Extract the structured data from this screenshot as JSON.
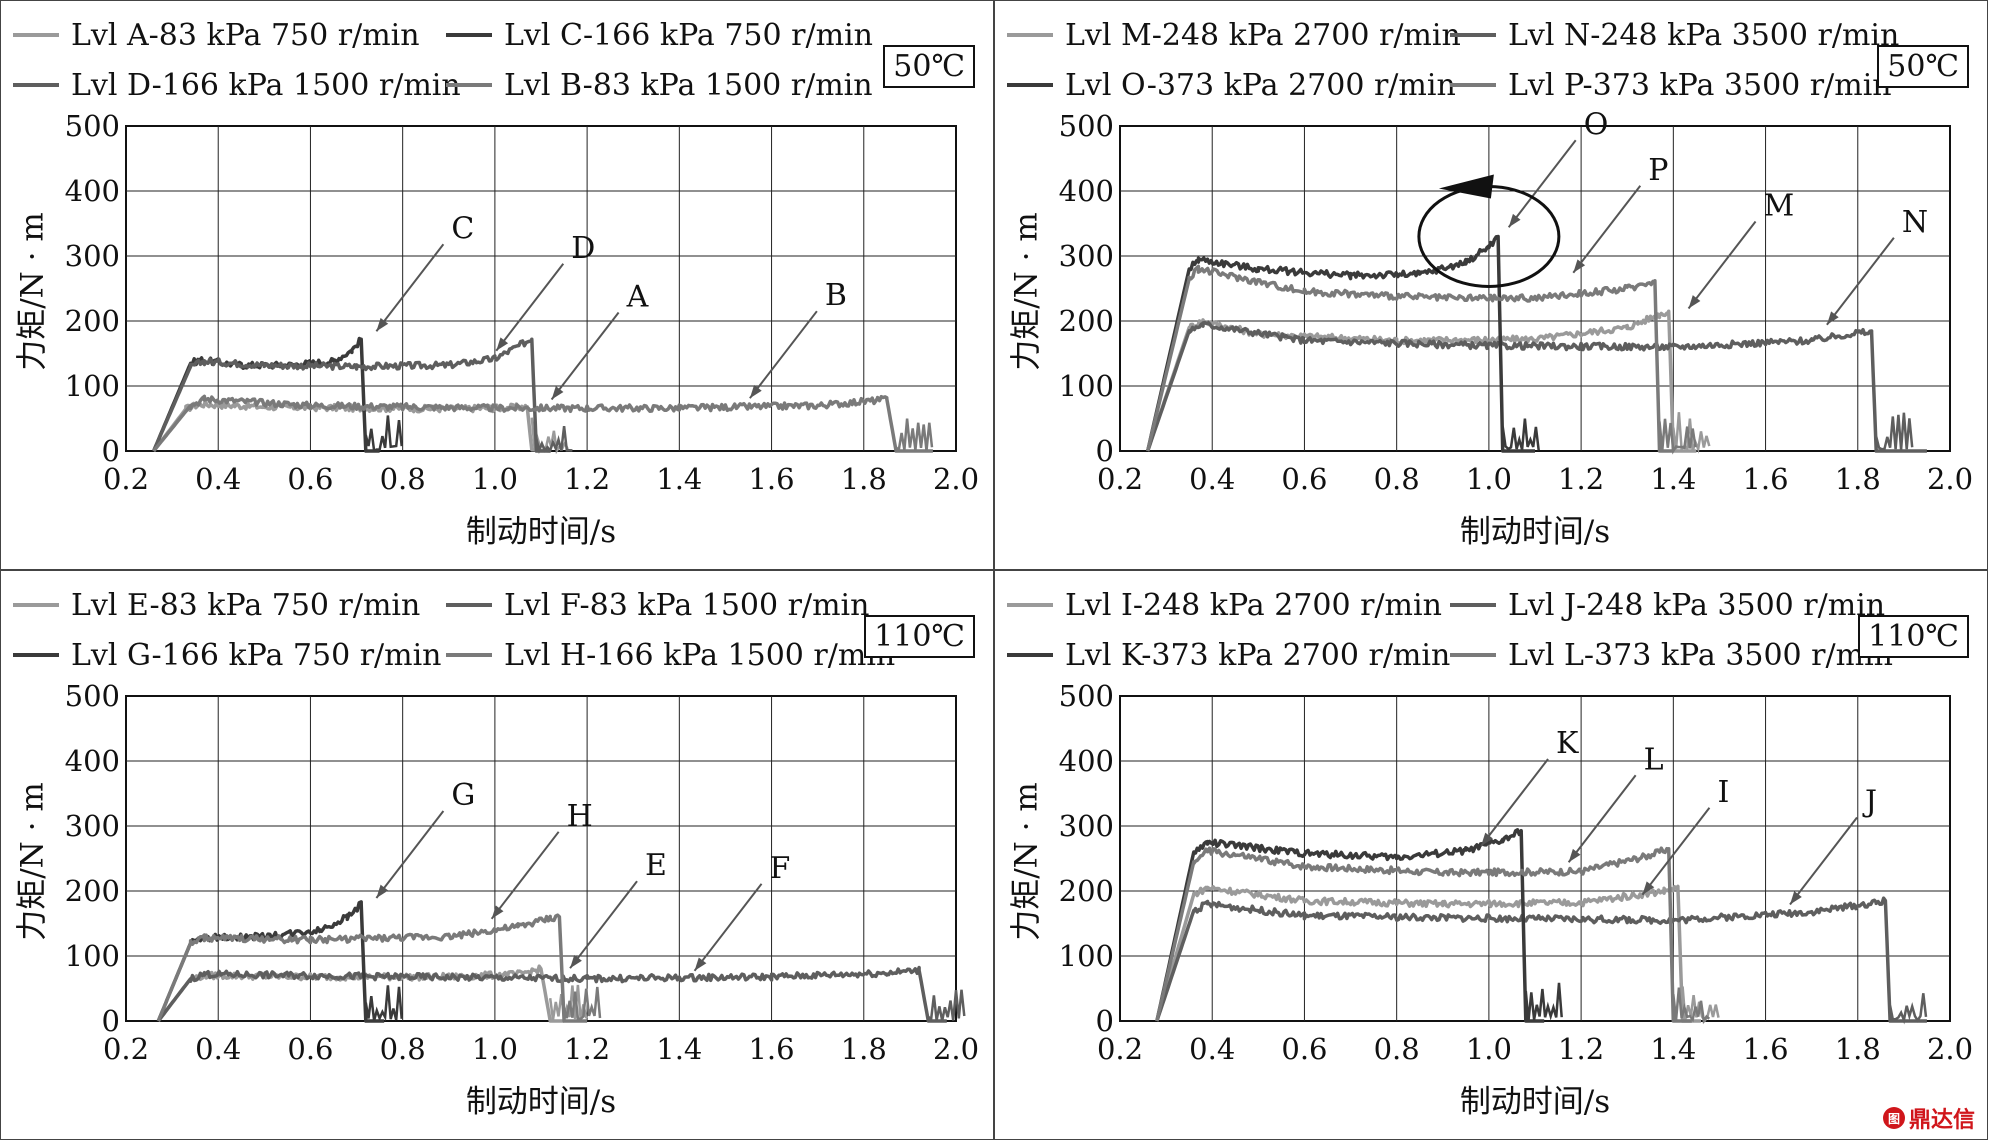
{
  "chart_data": [
    {
      "type": "line",
      "temperature": "50℃",
      "xlabel": "制动时间/s",
      "ylabel": "力矩/N · m",
      "xlim": [
        0.2,
        2.0
      ],
      "ylim": [
        0,
        500
      ],
      "xticks": [
        "0.2",
        "0.4",
        "0.6",
        "0.8",
        "1.0",
        "1.2",
        "1.4",
        "1.6",
        "1.8",
        "2.0"
      ],
      "yticks": [
        "0",
        "100",
        "200",
        "300",
        "400",
        "500"
      ],
      "grid": true,
      "legend": [
        {
          "label": "Lvl A-83 kPa 750 r/min",
          "color": "#9a9a9a"
        },
        {
          "label": "Lvl C-166 kPa 750 r/min",
          "color": "#3a3a3a"
        },
        {
          "label": "Lvl D-166 kPa 1500 r/min",
          "color": "#5e5e5e"
        },
        {
          "label": "Lvl B-83 kPa 1500 r/min",
          "color": "#7a7a7a"
        }
      ],
      "series": [
        {
          "name": "Lvl A-83 kPa 750 r/min",
          "color": "#9a9a9a",
          "x": [
            0.26,
            0.33,
            0.36,
            0.5,
            0.7,
            0.9,
            1.0,
            1.07,
            1.08,
            1.12
          ],
          "y": [
            0,
            65,
            72,
            68,
            66,
            65,
            66,
            68,
            2,
            0
          ]
        },
        {
          "name": "Lvl C-166 kPa 750 r/min",
          "color": "#3a3a3a",
          "x": [
            0.26,
            0.34,
            0.36,
            0.45,
            0.55,
            0.65,
            0.69,
            0.71,
            0.72,
            0.75
          ],
          "y": [
            0,
            135,
            140,
            132,
            132,
            138,
            155,
            172,
            0,
            0
          ]
        },
        {
          "name": "Lvl D-166 kPa 1500 r/min",
          "color": "#5e5e5e",
          "x": [
            0.26,
            0.34,
            0.37,
            0.5,
            0.7,
            0.9,
            1.0,
            1.06,
            1.08,
            1.09,
            1.12
          ],
          "y": [
            0,
            130,
            138,
            132,
            130,
            132,
            142,
            165,
            172,
            0,
            0
          ]
        },
        {
          "name": "Lvl B-83 kPa 1500 r/min",
          "color": "#7a7a7a",
          "x": [
            0.26,
            0.34,
            0.37,
            0.6,
            1.0,
            1.4,
            1.7,
            1.83,
            1.85,
            1.87,
            1.95
          ],
          "y": [
            0,
            70,
            80,
            70,
            66,
            66,
            70,
            78,
            80,
            0,
            0
          ]
        }
      ],
      "annotations": [
        {
          "label": "C",
          "x": 0.73,
          "y": 175
        },
        {
          "label": "D",
          "x": 0.99,
          "y": 145
        },
        {
          "label": "A",
          "x": 1.11,
          "y": 70
        },
        {
          "label": "B",
          "x": 1.54,
          "y": 72
        }
      ]
    },
    {
      "type": "line",
      "temperature": "50℃",
      "xlabel": "制动时间/s",
      "ylabel": "力矩/N · m",
      "xlim": [
        0.2,
        2.0
      ],
      "ylim": [
        0,
        500
      ],
      "xticks": [
        "0.2",
        "0.4",
        "0.6",
        "0.8",
        "1.0",
        "1.2",
        "1.4",
        "1.6",
        "1.8",
        "2.0"
      ],
      "yticks": [
        "0",
        "100",
        "200",
        "300",
        "400",
        "500"
      ],
      "grid": true,
      "legend": [
        {
          "label": "Lvl M-248 kPa 2700 r/min",
          "color": "#9a9a9a"
        },
        {
          "label": "Lvl N-248 kPa 3500 r/min",
          "color": "#5e5e5e"
        },
        {
          "label": "Lvl O-373 kPa 2700 r/min",
          "color": "#3a3a3a"
        },
        {
          "label": "Lvl P-373 kPa 3500 r/min",
          "color": "#7a7a7a"
        }
      ],
      "series": [
        {
          "name": "Lvl M-248 kPa 2700 r/min",
          "color": "#9a9a9a",
          "x": [
            0.26,
            0.35,
            0.38,
            0.5,
            0.8,
            1.1,
            1.3,
            1.37,
            1.39,
            1.4,
            1.45
          ],
          "y": [
            0,
            190,
            200,
            180,
            170,
            172,
            190,
            210,
            215,
            0,
            0
          ]
        },
        {
          "name": "Lvl N-248 kPa 3500 r/min",
          "color": "#5e5e5e",
          "x": [
            0.26,
            0.35,
            0.38,
            0.6,
            1.0,
            1.4,
            1.7,
            1.8,
            1.83,
            1.84,
            1.95
          ],
          "y": [
            0,
            185,
            195,
            170,
            162,
            160,
            170,
            182,
            182,
            0,
            0
          ]
        },
        {
          "name": "Lvl O-373 kPa 2700 r/min",
          "color": "#3a3a3a",
          "x": [
            0.26,
            0.35,
            0.37,
            0.5,
            0.7,
            0.85,
            0.95,
            1.0,
            1.02,
            1.03,
            1.1
          ],
          "y": [
            0,
            280,
            295,
            280,
            270,
            272,
            290,
            315,
            330,
            0,
            0
          ]
        },
        {
          "name": "Lvl P-373 kPa 3500 r/min",
          "color": "#7a7a7a",
          "x": [
            0.26,
            0.35,
            0.37,
            0.6,
            0.9,
            1.1,
            1.3,
            1.36,
            1.37,
            1.4
          ],
          "y": [
            0,
            265,
            280,
            245,
            235,
            235,
            250,
            262,
            0,
            0
          ]
        }
      ],
      "annotations": [
        {
          "label": "O",
          "x": 1.03,
          "y": 335
        },
        {
          "label": "P",
          "x": 1.17,
          "y": 265
        },
        {
          "label": "M",
          "x": 1.42,
          "y": 210
        },
        {
          "label": "N",
          "x": 1.72,
          "y": 185
        }
      ]
    },
    {
      "type": "line",
      "temperature": "110℃",
      "xlabel": "制动时间/s",
      "ylabel": "力矩/N · m",
      "xlim": [
        0.2,
        2.0
      ],
      "ylim": [
        0,
        500
      ],
      "xticks": [
        "0.2",
        "0.4",
        "0.6",
        "0.8",
        "1.0",
        "1.2",
        "1.4",
        "1.6",
        "1.8",
        "2.0"
      ],
      "yticks": [
        "0",
        "100",
        "200",
        "300",
        "400",
        "500"
      ],
      "grid": true,
      "legend": [
        {
          "label": "Lvl E-83 kPa 750 r/min",
          "color": "#9a9a9a"
        },
        {
          "label": "Lvl F-83 kPa 1500 r/min",
          "color": "#5e5e5e"
        },
        {
          "label": "Lvl G-166 kPa 750 r/min",
          "color": "#3a3a3a"
        },
        {
          "label": "Lvl H-166 kPa 1500 r/min",
          "color": "#7a7a7a"
        }
      ],
      "series": [
        {
          "name": "Lvl E-83 kPa 750 r/min",
          "color": "#9a9a9a",
          "x": [
            0.27,
            0.34,
            0.37,
            0.6,
            0.9,
            1.05,
            1.1,
            1.12,
            1.15
          ],
          "y": [
            0,
            65,
            70,
            68,
            68,
            72,
            80,
            0,
            0
          ]
        },
        {
          "name": "Lvl F-83 kPa 1500 r/min",
          "color": "#5e5e5e",
          "x": [
            0.27,
            0.34,
            0.37,
            0.8,
            1.2,
            1.6,
            1.85,
            1.92,
            1.94,
            1.98
          ],
          "y": [
            0,
            65,
            72,
            68,
            65,
            68,
            74,
            78,
            0,
            0
          ]
        },
        {
          "name": "Lvl G-166 kPa 750 r/min",
          "color": "#3a3a3a",
          "x": [
            0.27,
            0.34,
            0.37,
            0.5,
            0.62,
            0.68,
            0.71,
            0.72,
            0.76
          ],
          "y": [
            0,
            120,
            128,
            130,
            140,
            160,
            180,
            0,
            0
          ]
        },
        {
          "name": "Lvl H-166 kPa 1500 r/min",
          "color": "#7a7a7a",
          "x": [
            0.27,
            0.34,
            0.37,
            0.6,
            0.9,
            1.05,
            1.12,
            1.14,
            1.15,
            1.2
          ],
          "y": [
            0,
            120,
            128,
            125,
            130,
            145,
            158,
            160,
            0,
            0
          ]
        }
      ],
      "annotations": [
        {
          "label": "G",
          "x": 0.73,
          "y": 180
        },
        {
          "label": "H",
          "x": 0.98,
          "y": 148
        },
        {
          "label": "E",
          "x": 1.15,
          "y": 72
        },
        {
          "label": "F",
          "x": 1.42,
          "y": 68
        }
      ]
    },
    {
      "type": "line",
      "temperature": "110℃",
      "xlabel": "制动时间/s",
      "ylabel": "力矩/N · m",
      "xlim": [
        0.2,
        2.0
      ],
      "ylim": [
        0,
        500
      ],
      "xticks": [
        "0.2",
        "0.4",
        "0.6",
        "0.8",
        "1.0",
        "1.2",
        "1.4",
        "1.6",
        "1.8",
        "2.0"
      ],
      "yticks": [
        "0",
        "100",
        "200",
        "300",
        "400",
        "500"
      ],
      "grid": true,
      "legend": [
        {
          "label": "Lvl I-248 kPa 2700 r/min",
          "color": "#9a9a9a"
        },
        {
          "label": "Lvl J-248 kPa 3500 r/min",
          "color": "#5e5e5e"
        },
        {
          "label": "Lvl K-373 kPa 2700 r/min",
          "color": "#3a3a3a"
        },
        {
          "label": "Lvl L-373 kPa 3500 r/min",
          "color": "#7a7a7a"
        }
      ],
      "series": [
        {
          "name": "Lvl I-248 kPa 2700 r/min",
          "color": "#9a9a9a",
          "x": [
            0.28,
            0.36,
            0.39,
            0.6,
            0.9,
            1.2,
            1.38,
            1.41,
            1.42,
            1.46
          ],
          "y": [
            0,
            195,
            205,
            185,
            180,
            182,
            200,
            205,
            0,
            0
          ]
        },
        {
          "name": "Lvl J-248 kPa 3500 r/min",
          "color": "#5e5e5e",
          "x": [
            0.28,
            0.36,
            0.39,
            0.6,
            1.0,
            1.4,
            1.7,
            1.84,
            1.86,
            1.87,
            1.95
          ],
          "y": [
            0,
            170,
            180,
            162,
            158,
            155,
            168,
            182,
            185,
            0,
            0
          ]
        },
        {
          "name": "Lvl K-373 kPa 2700 r/min",
          "color": "#3a3a3a",
          "x": [
            0.28,
            0.36,
            0.39,
            0.6,
            0.8,
            0.95,
            1.03,
            1.07,
            1.08,
            1.12
          ],
          "y": [
            0,
            260,
            275,
            258,
            252,
            262,
            278,
            292,
            0,
            0
          ]
        },
        {
          "name": "Lvl L-373 kPa 3500 r/min",
          "color": "#7a7a7a",
          "x": [
            0.28,
            0.36,
            0.39,
            0.6,
            0.9,
            1.2,
            1.35,
            1.39,
            1.4,
            1.44
          ],
          "y": [
            0,
            245,
            262,
            238,
            228,
            230,
            255,
            265,
            0,
            0
          ]
        }
      ],
      "annotations": [
        {
          "label": "K",
          "x": 0.97,
          "y": 260
        },
        {
          "label": "L",
          "x": 1.16,
          "y": 235
        },
        {
          "label": "I",
          "x": 1.32,
          "y": 185
        },
        {
          "label": "J",
          "x": 1.64,
          "y": 170
        }
      ]
    }
  ],
  "watermark": {
    "text": "鼎达信",
    "logo": "图"
  }
}
